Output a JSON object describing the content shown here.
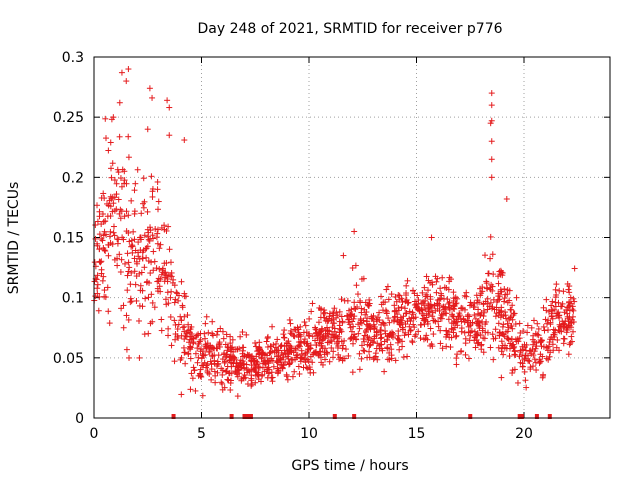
{
  "chart_data": {
    "type": "scatter",
    "title": "Day 248 of 2021, SRMTID for receiver p776",
    "xlabel": "GPS time / hours",
    "ylabel": "SRMTID / TECUs",
    "xlim": [
      0,
      24
    ],
    "ylim": [
      0,
      0.3
    ],
    "xticks": [
      0,
      5,
      10,
      15,
      20
    ],
    "yticks": [
      0,
      0.05,
      0.1,
      0.15,
      0.2,
      0.25,
      0.3
    ],
    "grid": true,
    "marker": "+",
    "color": "#e41a1c",
    "seed": 248,
    "series": [
      {
        "name": "SRMTID",
        "trend": [
          [
            0.0,
            0.13,
            0.025
          ],
          [
            0.5,
            0.15,
            0.04
          ],
          [
            1.0,
            0.16,
            0.05
          ],
          [
            1.5,
            0.15,
            0.05
          ],
          [
            2.0,
            0.13,
            0.04
          ],
          [
            2.5,
            0.14,
            0.045
          ],
          [
            3.0,
            0.13,
            0.04
          ],
          [
            3.5,
            0.11,
            0.03
          ],
          [
            4.0,
            0.08,
            0.025
          ],
          [
            4.5,
            0.06,
            0.018
          ],
          [
            5.0,
            0.055,
            0.018
          ],
          [
            5.5,
            0.05,
            0.018
          ],
          [
            6.0,
            0.05,
            0.015
          ],
          [
            6.5,
            0.045,
            0.012
          ],
          [
            7.0,
            0.045,
            0.012
          ],
          [
            7.5,
            0.045,
            0.012
          ],
          [
            8.0,
            0.05,
            0.012
          ],
          [
            8.5,
            0.05,
            0.012
          ],
          [
            9.0,
            0.055,
            0.012
          ],
          [
            9.5,
            0.06,
            0.013
          ],
          [
            10.0,
            0.06,
            0.013
          ],
          [
            10.5,
            0.065,
            0.015
          ],
          [
            11.0,
            0.07,
            0.018
          ],
          [
            11.5,
            0.07,
            0.018
          ],
          [
            12.0,
            0.08,
            0.02
          ],
          [
            12.5,
            0.075,
            0.02
          ],
          [
            13.0,
            0.07,
            0.018
          ],
          [
            13.5,
            0.07,
            0.018
          ],
          [
            14.0,
            0.075,
            0.018
          ],
          [
            14.5,
            0.08,
            0.018
          ],
          [
            15.0,
            0.085,
            0.018
          ],
          [
            15.5,
            0.09,
            0.02
          ],
          [
            16.0,
            0.09,
            0.02
          ],
          [
            16.5,
            0.085,
            0.02
          ],
          [
            17.0,
            0.08,
            0.018
          ],
          [
            17.5,
            0.08,
            0.018
          ],
          [
            18.0,
            0.085,
            0.02
          ],
          [
            18.5,
            0.1,
            0.03
          ],
          [
            19.0,
            0.085,
            0.025
          ],
          [
            19.5,
            0.07,
            0.02
          ],
          [
            20.0,
            0.05,
            0.015
          ],
          [
            20.5,
            0.055,
            0.015
          ],
          [
            21.0,
            0.07,
            0.018
          ],
          [
            21.5,
            0.08,
            0.02
          ],
          [
            22.0,
            0.085,
            0.022
          ],
          [
            22.4,
            0.08,
            0.02
          ]
        ]
      }
    ],
    "extreme_points": [
      [
        1.3,
        0.287
      ],
      [
        1.6,
        0.29
      ],
      [
        1.5,
        0.28
      ],
      [
        2.6,
        0.274
      ],
      [
        2.7,
        0.266
      ],
      [
        3.4,
        0.264
      ],
      [
        3.5,
        0.258
      ],
      [
        2.5,
        0.24
      ],
      [
        3.5,
        0.235
      ],
      [
        4.2,
        0.231
      ],
      [
        0.9,
        0.25
      ],
      [
        1.2,
        0.262
      ],
      [
        18.5,
        0.27
      ],
      [
        18.5,
        0.26
      ],
      [
        18.5,
        0.247
      ],
      [
        18.45,
        0.245
      ],
      [
        18.5,
        0.23
      ],
      [
        18.5,
        0.215
      ],
      [
        18.5,
        0.2
      ],
      [
        19.2,
        0.182
      ],
      [
        12.1,
        0.155
      ],
      [
        15.7,
        0.15
      ],
      [
        11.6,
        0.135
      ]
    ],
    "gap_markers_x": [
      3.7,
      6.4,
      7.0,
      7.15,
      7.3,
      11.2,
      12.1,
      17.5,
      19.8,
      19.9,
      20.6,
      21.2
    ]
  }
}
